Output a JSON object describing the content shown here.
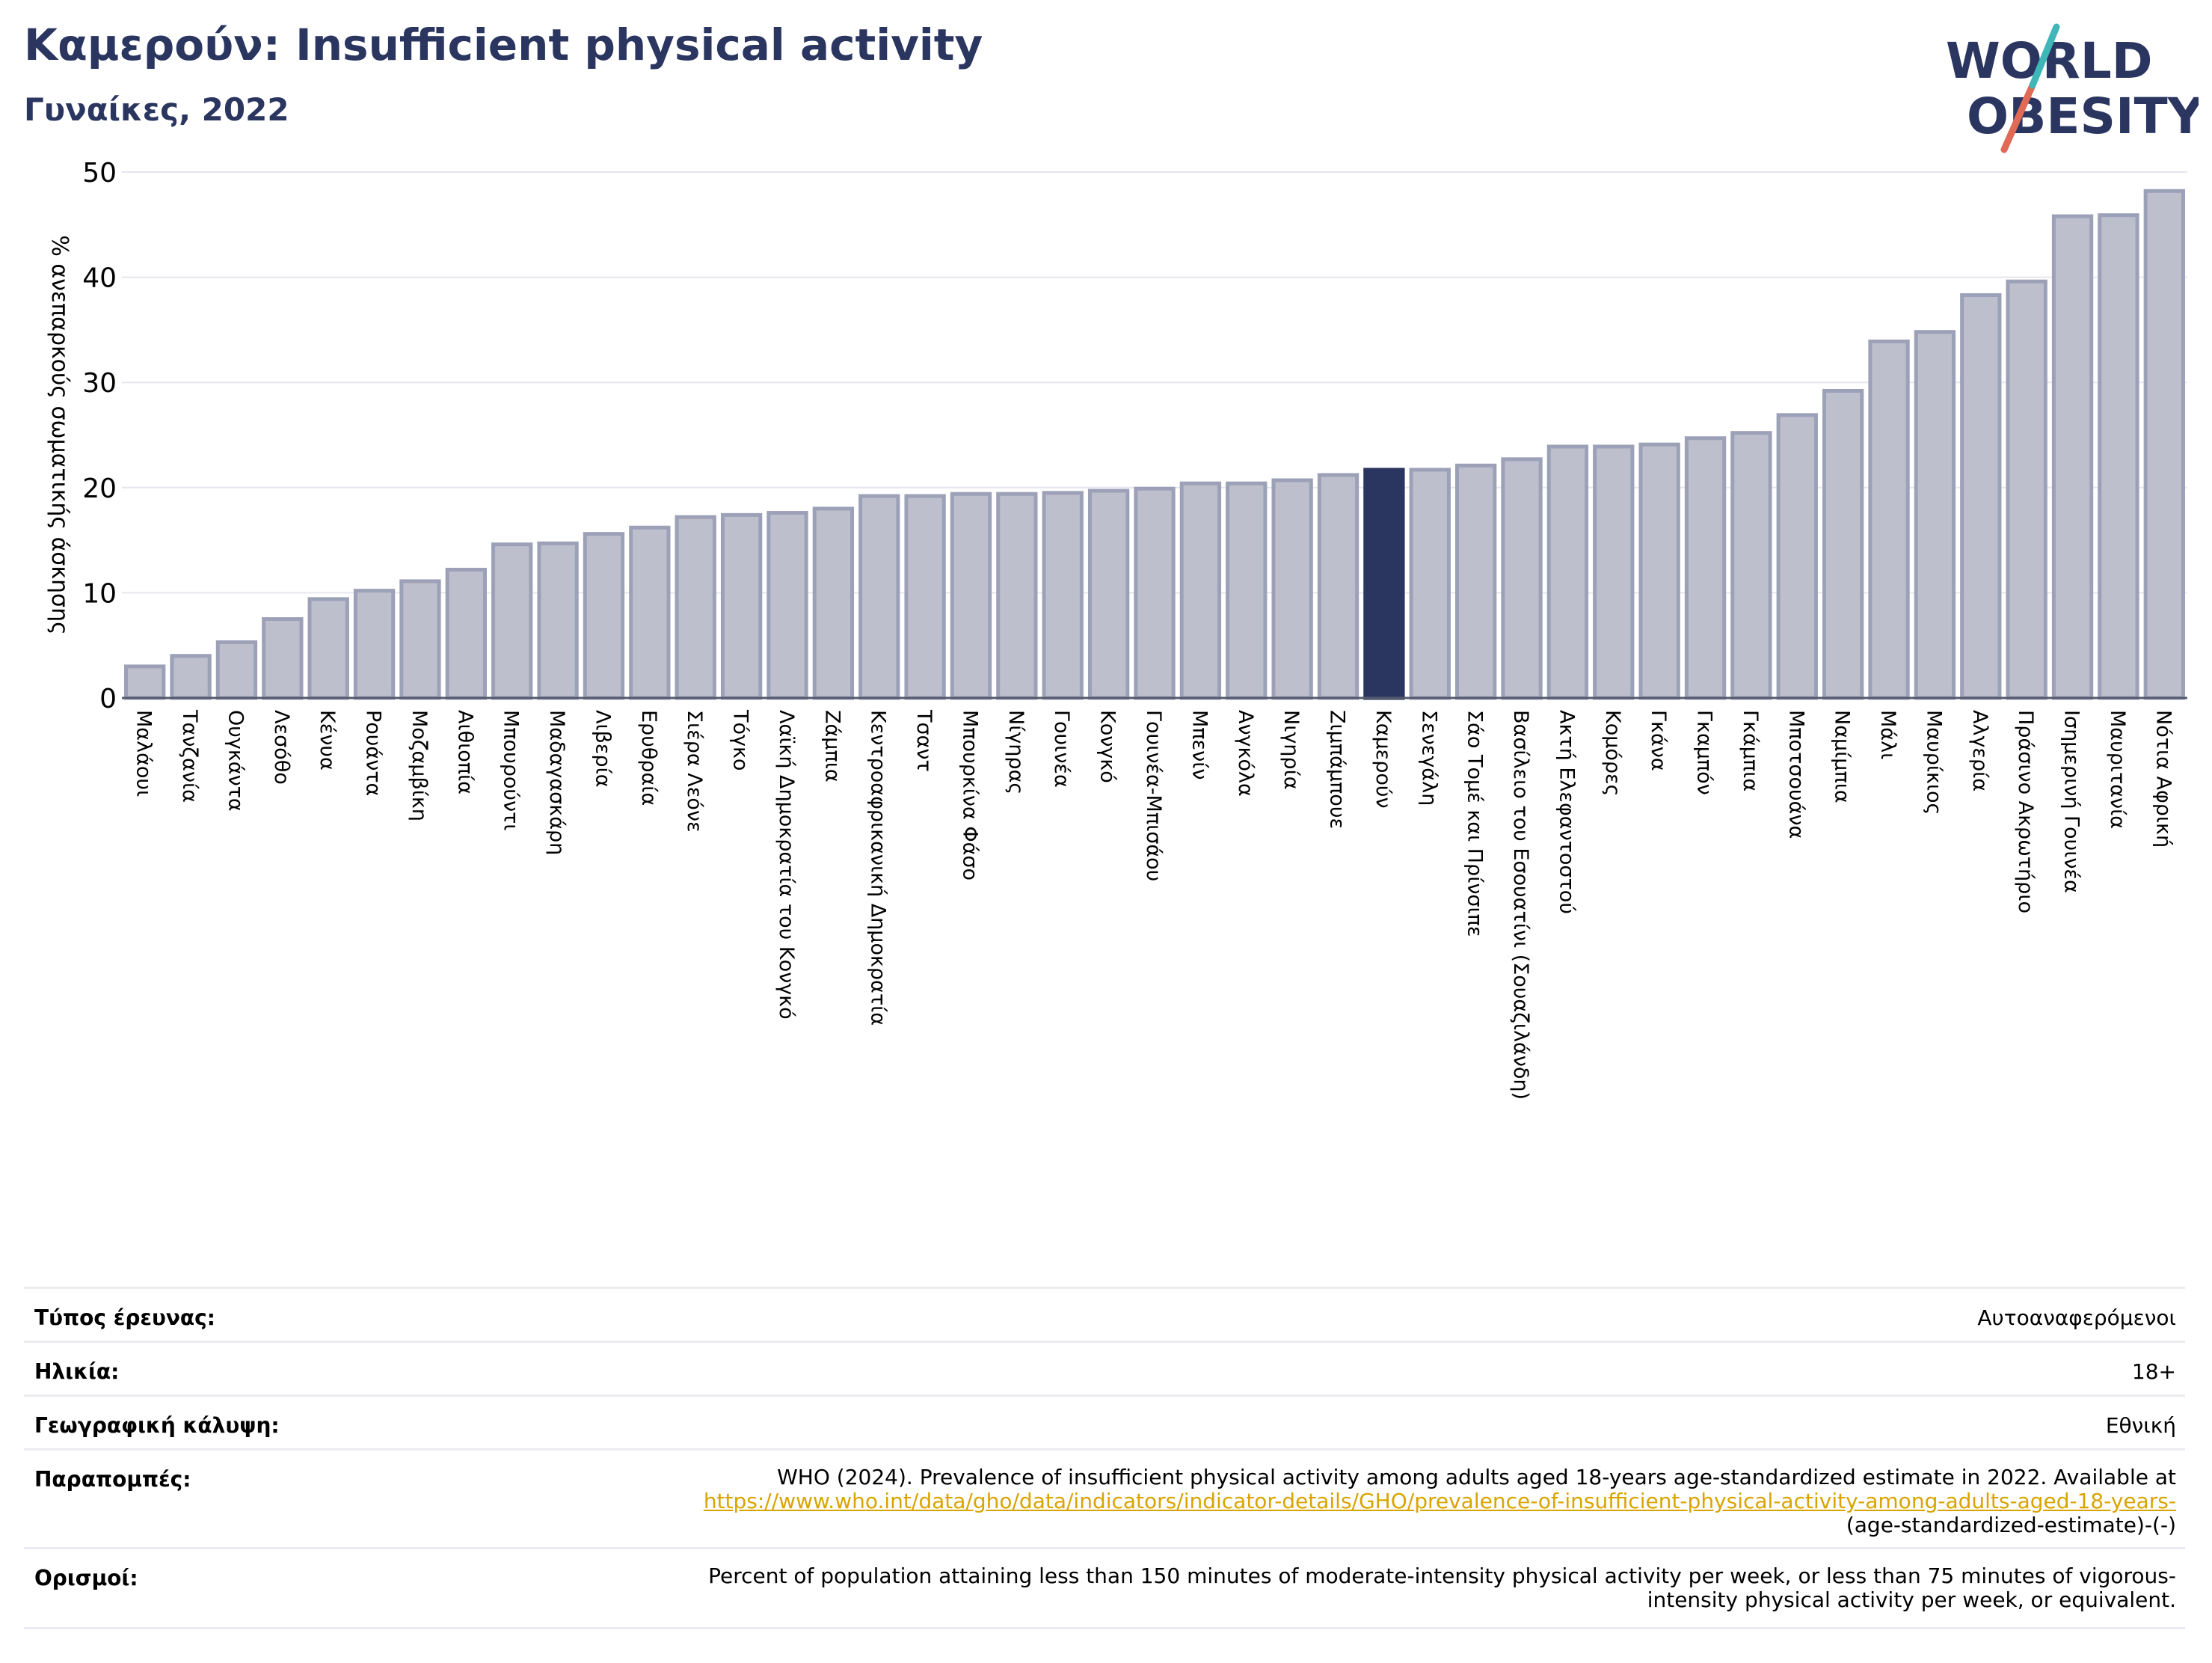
{
  "header": {
    "title": "Καμερούν: Insufficient physical activity",
    "subtitle": "Γυναίκες, 2022"
  },
  "logo": {
    "line1": "WORLD",
    "line2": "OBESITY",
    "icon": "world-obesity-logo"
  },
  "colors": {
    "bar": "#bdbfcc",
    "bar_edge": "#9da1b8",
    "highlight": "#2a3560",
    "title": "#2a3560",
    "link": "#d9a400"
  },
  "chart_data": {
    "type": "bar",
    "ylabel": "% ανεπαρκούς σωματικής άσκησης",
    "ylim": [
      0,
      50
    ],
    "yticks": [
      0,
      10,
      20,
      30,
      40,
      50
    ],
    "grid": true,
    "highlight": "Καμερούν",
    "categories": [
      "Μαλάουι",
      "Τανζανία",
      "Ουγκάντα",
      "Λεσόθο",
      "Κένυα",
      "Ρουάντα",
      "Μοζαμβίκη",
      "Αιθιοπία",
      "Μπουρούντι",
      "Μαδαγασκάρη",
      "Λιβερία",
      "Ερυθραία",
      "Σιέρα Λεόνε",
      "Τόγκο",
      "Λαϊκή Δημοκρατία του Κονγκό",
      "Ζάμπια",
      "Κεντροαφρικανική Δημοκρατία",
      "Τσαντ",
      "Μπουρκίνα Φάσο",
      "Νίγηρας",
      "Γουινέα",
      "Κονγκό",
      "Γουινέα-Μπισάου",
      "Μπενίν",
      "Ανγκόλα",
      "Νιγηρία",
      "Ζιμπάμπουε",
      "Καμερούν",
      "Σενεγάλη",
      "Σάο Τομέ και Πρίνσιπε",
      "Βασίλειο του Εσουατίνι (Σουαζιλάνδη)",
      "Ακτή Ελεφαντοστού",
      "Κομόρες",
      "Γκάνα",
      "Γκαμπόν",
      "Γκάμπια",
      "Μποτσουάνα",
      "Ναμίμπια",
      "Μάλι",
      "Μαυρίκιος",
      "Αλγερία",
      "Πράσινο Ακρωτήριο",
      "Ισημερινή Γουινέα",
      "Μαυριτανία",
      "Νότια Αφρική"
    ],
    "values": [
      3.0,
      4.0,
      5.3,
      7.5,
      9.4,
      10.2,
      11.1,
      12.2,
      14.6,
      14.7,
      15.6,
      16.2,
      17.2,
      17.4,
      17.6,
      18.0,
      19.2,
      19.2,
      19.4,
      19.4,
      19.5,
      19.7,
      19.9,
      20.4,
      20.4,
      20.7,
      21.2,
      21.7,
      21.7,
      22.1,
      22.7,
      23.9,
      23.9,
      24.1,
      24.7,
      25.2,
      26.9,
      29.2,
      33.9,
      34.8,
      38.3,
      39.6,
      45.8,
      45.9,
      48.2
    ]
  },
  "info": {
    "rows": [
      {
        "label": "Τύπος έρευνας:",
        "value": "Αυτοαναφερόμενοι"
      },
      {
        "label": "Ηλικία:",
        "value": "18+"
      },
      {
        "label": "Γεωγραφική κάλυψη:",
        "value": "Εθνική"
      }
    ],
    "references": {
      "label": "Παραπομπές:",
      "text": "WHO (2024). Prevalence of insufficient physical activity among adults aged 18-years age-standardized estimate in 2022. Available at",
      "link": "https://www.who.int/data/gho/data/indicators/indicator-details/GHO/prevalence-of-insufficient-physical-activity-among-adults-aged-18-years-",
      "tail": "(age-standardized-estimate)-(-)"
    },
    "definitions": {
      "label": "Ορισμοί:",
      "line1": "Percent of population attaining less than 150 minutes of moderate-intensity physical activity per week, or less than 75 minutes of vigorous-",
      "line2": "intensity physical activity per week, or equivalent."
    }
  }
}
